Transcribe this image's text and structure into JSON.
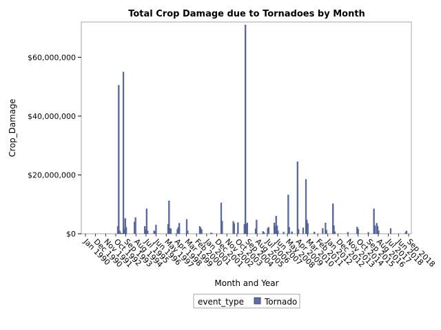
{
  "chart_data": {
    "type": "bar",
    "title": "Total Crop Damage due to Tornadoes by Month",
    "xlabel": "Month and Year",
    "ylabel": "Crop_Damage",
    "ylim": [
      0,
      72000000
    ],
    "yticks": [
      0,
      20000000,
      40000000,
      60000000
    ],
    "ytick_labels": [
      "$0",
      "$20,000,000",
      "$40,000,000",
      "$60,000,000"
    ],
    "xrange": [
      "1990-01",
      "2018-09"
    ],
    "xtick_labels": [
      "Jan 1990",
      "Dec 1990",
      "Nov 1991",
      "Oct 1992",
      "Sep 1993",
      "Aug 1994",
      "Jul 1995",
      "Jun 1996",
      "May 1997",
      "Apr 1998",
      "Mar 1999",
      "Feb 2000",
      "Jan 2001",
      "Dec 2001",
      "Nov 2002",
      "Oct 2003",
      "Sep 2004",
      "Aug 2005",
      "Jul 2006",
      "Jun 2007",
      "May 2008",
      "Apr 2009",
      "Mar 2010",
      "Feb 2011",
      "Jan 2012",
      "Dec 2012",
      "Nov 2013",
      "Oct 2014",
      "Sep 2015",
      "Aug 2016",
      "Jul 2017",
      "Jun 2018",
      "Sep 2018"
    ],
    "grid": false,
    "legend": {
      "title": "event_type",
      "position": "bottom",
      "entries": [
        "Tornado"
      ]
    },
    "series": [
      {
        "name": "Tornado",
        "color": "#5e6ea7",
        "points": [
          [
            "1992-11",
            2500000
          ],
          [
            "1992-12",
            50500000
          ],
          [
            "1993-01",
            1000000
          ],
          [
            "1993-02",
            300000
          ],
          [
            "1993-04",
            200000
          ],
          [
            "1993-05",
            55000000
          ],
          [
            "1993-06",
            1500000
          ],
          [
            "1993-07",
            5200000
          ],
          [
            "1993-08",
            2200000
          ],
          [
            "1994-05",
            4000000
          ],
          [
            "1994-06",
            5500000
          ],
          [
            "1995-04",
            2500000
          ],
          [
            "1995-05",
            1200000
          ],
          [
            "1995-06",
            8500000
          ],
          [
            "1995-07",
            1000000
          ],
          [
            "1996-02",
            1000000
          ],
          [
            "1996-03",
            700000
          ],
          [
            "1996-04",
            3000000
          ],
          [
            "1997-05",
            3200000
          ],
          [
            "1997-06",
            11200000
          ],
          [
            "1997-07",
            1800000
          ],
          [
            "1997-08",
            1700000
          ],
          [
            "1998-03",
            1500000
          ],
          [
            "1998-04",
            2200000
          ],
          [
            "1998-05",
            3600000
          ],
          [
            "1999-01",
            4900000
          ],
          [
            "1999-02",
            1000000
          ],
          [
            "2000-03",
            2500000
          ],
          [
            "2000-04",
            2000000
          ],
          [
            "2000-05",
            1400000
          ],
          [
            "2001-03",
            300000
          ],
          [
            "2001-04",
            200000
          ],
          [
            "2002-02",
            10500000
          ],
          [
            "2002-03",
            4300000
          ],
          [
            "2003-03",
            4200000
          ],
          [
            "2003-04",
            3500000
          ],
          [
            "2003-08",
            3800000
          ],
          [
            "2004-03",
            3200000
          ],
          [
            "2004-04",
            71000000
          ],
          [
            "2004-05",
            3200000
          ],
          [
            "2004-06",
            3700000
          ],
          [
            "2005-03",
            1700000
          ],
          [
            "2005-04",
            4700000
          ],
          [
            "2005-11",
            800000
          ],
          [
            "2005-12",
            400000
          ],
          [
            "2006-04",
            1900000
          ],
          [
            "2006-05",
            2200000
          ],
          [
            "2006-11",
            3700000
          ],
          [
            "2006-12",
            2500000
          ],
          [
            "2007-01",
            6000000
          ],
          [
            "2007-02",
            2700000
          ],
          [
            "2007-03",
            1000000
          ],
          [
            "2007-09",
            600000
          ],
          [
            "2008-02",
            13200000
          ],
          [
            "2008-03",
            2200000
          ],
          [
            "2008-06",
            700000
          ],
          [
            "2008-12",
            24500000
          ],
          [
            "2009-01",
            1500000
          ],
          [
            "2009-06",
            2000000
          ],
          [
            "2009-09",
            18500000
          ],
          [
            "2009-10",
            4700000
          ],
          [
            "2009-11",
            3500000
          ],
          [
            "2010-06",
            600000
          ],
          [
            "2011-03",
            1800000
          ],
          [
            "2011-06",
            3700000
          ],
          [
            "2011-07",
            1200000
          ],
          [
            "2012-02",
            10200000
          ],
          [
            "2012-03",
            2800000
          ],
          [
            "2012-04",
            700000
          ],
          [
            "2013-06",
            500000
          ],
          [
            "2014-04",
            2300000
          ],
          [
            "2014-05",
            1600000
          ],
          [
            "2015-04",
            500000
          ],
          [
            "2015-10",
            8500000
          ],
          [
            "2015-11",
            2700000
          ],
          [
            "2016-01",
            3600000
          ],
          [
            "2016-02",
            2500000
          ],
          [
            "2016-03",
            1000000
          ],
          [
            "2017-04",
            1800000
          ],
          [
            "2018-08",
            500000
          ],
          [
            "2018-09",
            1000000
          ]
        ]
      }
    ]
  }
}
